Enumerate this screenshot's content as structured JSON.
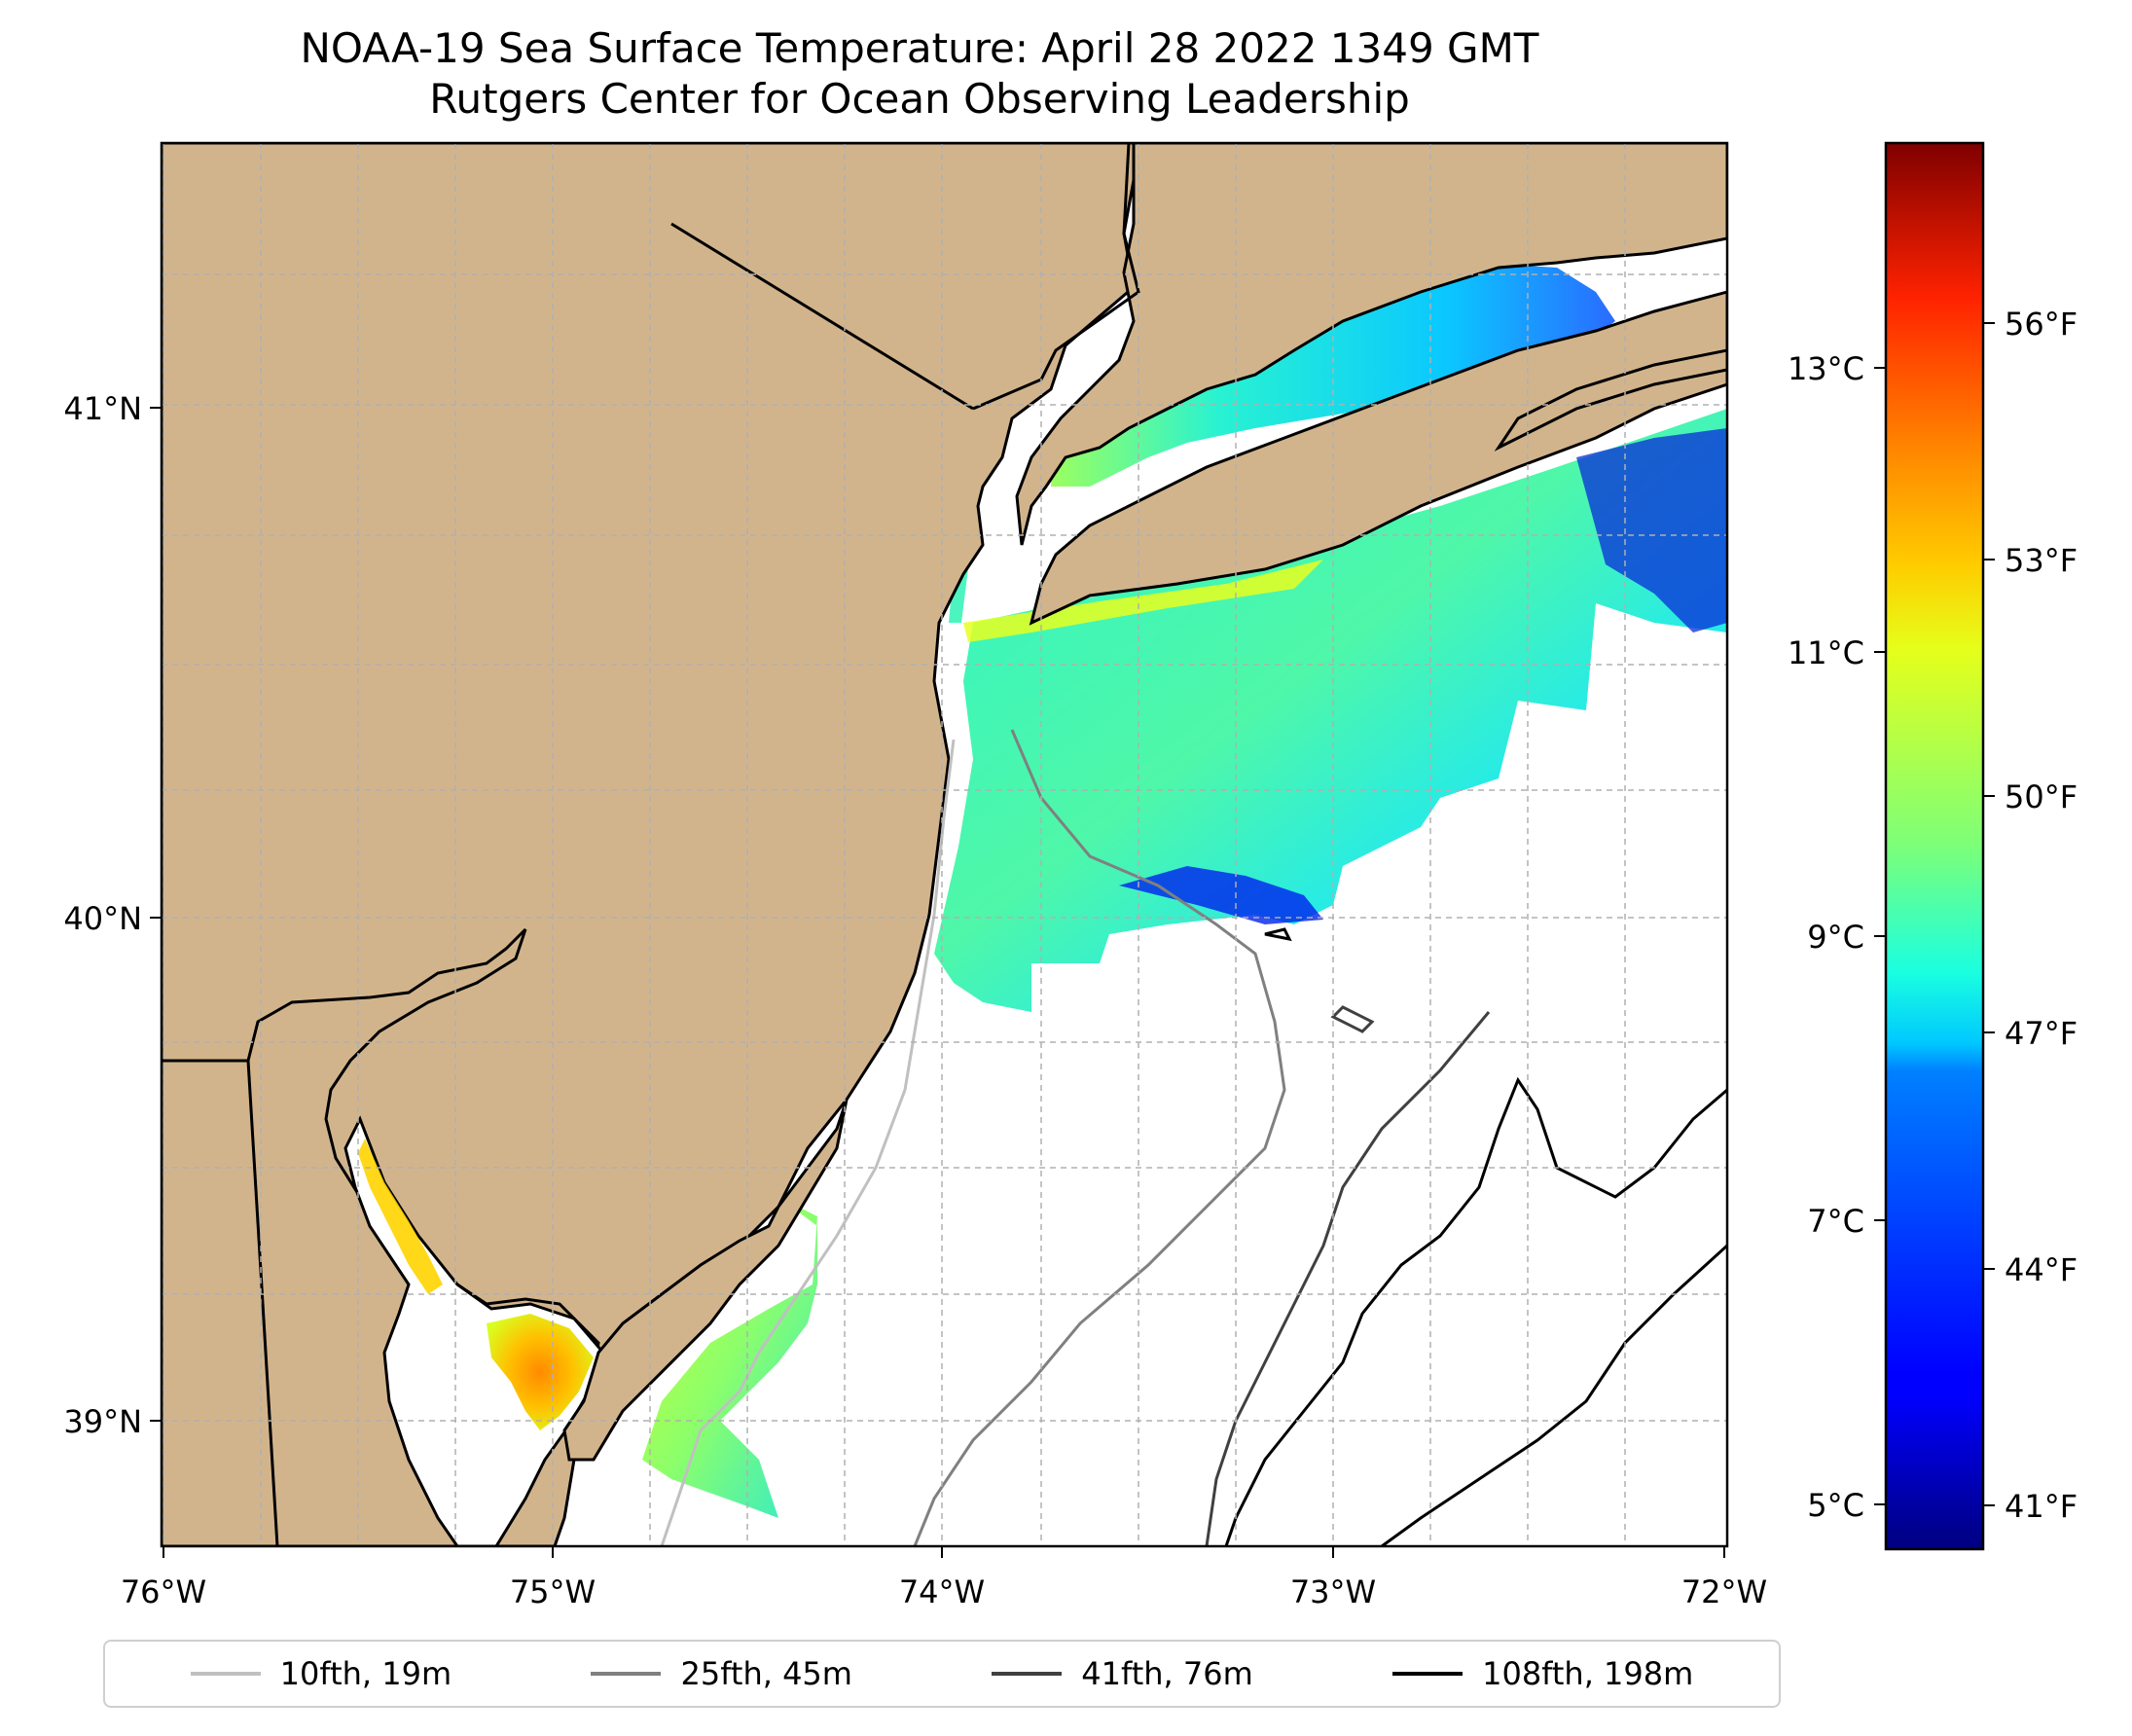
{
  "title": {
    "line1": "NOAA-19 Sea Surface Temperature: April 28 2022 1349 GMT",
    "line2": "Rutgers Center for Ocean Observing Leadership"
  },
  "map": {
    "land_color": "#d2b48c",
    "lon_labels": [
      "76°W",
      "75°W",
      "74°W",
      "73°W",
      "72°W"
    ],
    "lat_labels": [
      "41°N",
      "40°N",
      "39°N"
    ]
  },
  "colorbar": {
    "celsius_labels": [
      "13°C",
      "11°C",
      "9°C",
      "7°C",
      "5°C"
    ],
    "fahrenheit_labels": [
      "56°F",
      "53°F",
      "50°F",
      "47°F",
      "44°F",
      "41°F"
    ],
    "colormap": "jet"
  },
  "legend": {
    "items": [
      {
        "label": "10fth, 19m",
        "color": "#c0c0c0"
      },
      {
        "label": "25fth, 45m",
        "color": "#808080"
      },
      {
        "label": "41fth, 76m",
        "color": "#404040"
      },
      {
        "label": "108fth, 198m",
        "color": "#000000"
      }
    ]
  }
}
